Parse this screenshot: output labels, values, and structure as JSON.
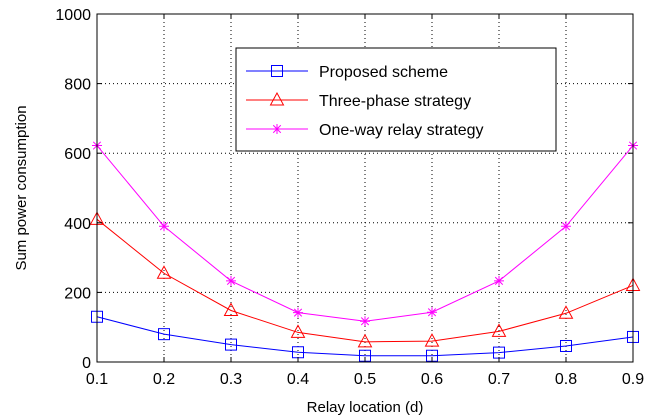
{
  "chart_data": {
    "type": "line",
    "xlabel": "Relay location (d)",
    "ylabel": "Sum power consumption",
    "xlim": [
      0.1,
      0.9
    ],
    "ylim": [
      0,
      1000
    ],
    "x": [
      0.1,
      0.2,
      0.3,
      0.4,
      0.5,
      0.6,
      0.7,
      0.8,
      0.9
    ],
    "x_tick_labels": [
      "0.1",
      "0.2",
      "0.3",
      "0.4",
      "0.5",
      "0.6",
      "0.7",
      "0.8",
      "0.9"
    ],
    "y_ticks": [
      0,
      200,
      400,
      600,
      800,
      1000
    ],
    "y_tick_labels": [
      "0",
      "200",
      "400",
      "600",
      "800",
      "1000"
    ],
    "grid": true,
    "legend_position": "top-right",
    "series": [
      {
        "name": "Proposed scheme",
        "color": "#0000ff",
        "marker": "square",
        "values": [
          130,
          80,
          50,
          28,
          18,
          18,
          27,
          46,
          72
        ]
      },
      {
        "name": "Three-phase strategy",
        "color": "#ff0000",
        "marker": "triangle",
        "values": [
          410,
          255,
          148,
          85,
          58,
          60,
          88,
          140,
          220
        ]
      },
      {
        "name": "One-way relay strategy",
        "color": "#ff00ff",
        "marker": "star",
        "values": [
          622,
          390,
          233,
          142,
          117,
          143,
          233,
          390,
          622
        ]
      }
    ]
  }
}
